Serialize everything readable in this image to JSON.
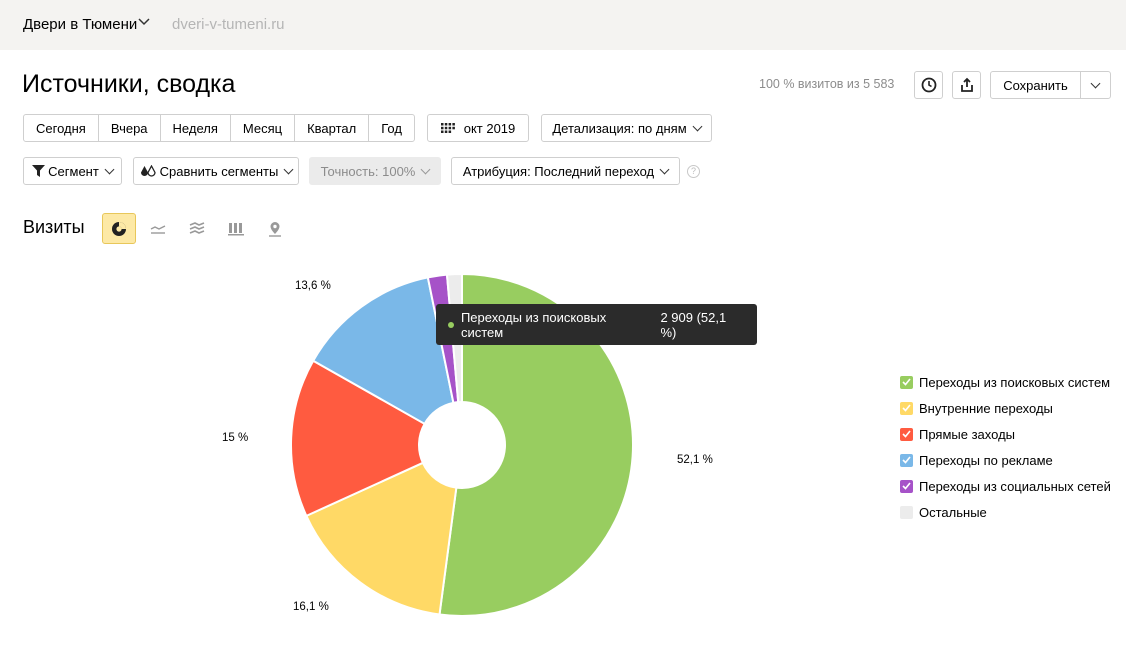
{
  "header": {
    "site_name": "Двери в Тюмени",
    "site_url": "dveri-v-tumeni.ru"
  },
  "page": {
    "title": "Источники, сводка",
    "visits_info": "100 % визитов из 5 583",
    "save_label": "Сохранить"
  },
  "period": {
    "buttons": [
      "Сегодня",
      "Вчера",
      "Неделя",
      "Месяц",
      "Квартал",
      "Год"
    ],
    "calendar_label": "окт 2019",
    "detail_label": "Детализация: по дням"
  },
  "filters": {
    "segment": "Сегмент",
    "compare": "Сравнить сегменты",
    "accuracy": "Точность: 100%",
    "attribution": "Атрибуция: Последний переход"
  },
  "section": {
    "title": "Визиты"
  },
  "view_types": [
    "pie-chart-icon",
    "line-chart-icon",
    "area-chart-icon",
    "bar-chart-icon",
    "map-icon"
  ],
  "tooltip": {
    "label": "Переходы из поисковых систем",
    "value": "2 909 (52,1 %)"
  },
  "chart_data": {
    "type": "pie",
    "donut": true,
    "series": [
      {
        "name": "Переходы из поисковых систем",
        "value": 52.1,
        "label": "52,1 %",
        "color": "#98cd60"
      },
      {
        "name": "Внутренние переходы",
        "value": 16.1,
        "label": "16,1 %",
        "color": "#ffd966"
      },
      {
        "name": "Прямые заходы",
        "value": 15.0,
        "label": "15 %",
        "color": "#ff5b40"
      },
      {
        "name": "Переходы по рекламе",
        "value": 13.6,
        "label": "13,6 %",
        "color": "#7ab8e8"
      },
      {
        "name": "Переходы из социальных сетей",
        "value": 1.8,
        "label": "",
        "color": "#a652c8"
      },
      {
        "name": "Остальные",
        "value": 1.4,
        "label": "",
        "color": "#ececec"
      }
    ]
  }
}
